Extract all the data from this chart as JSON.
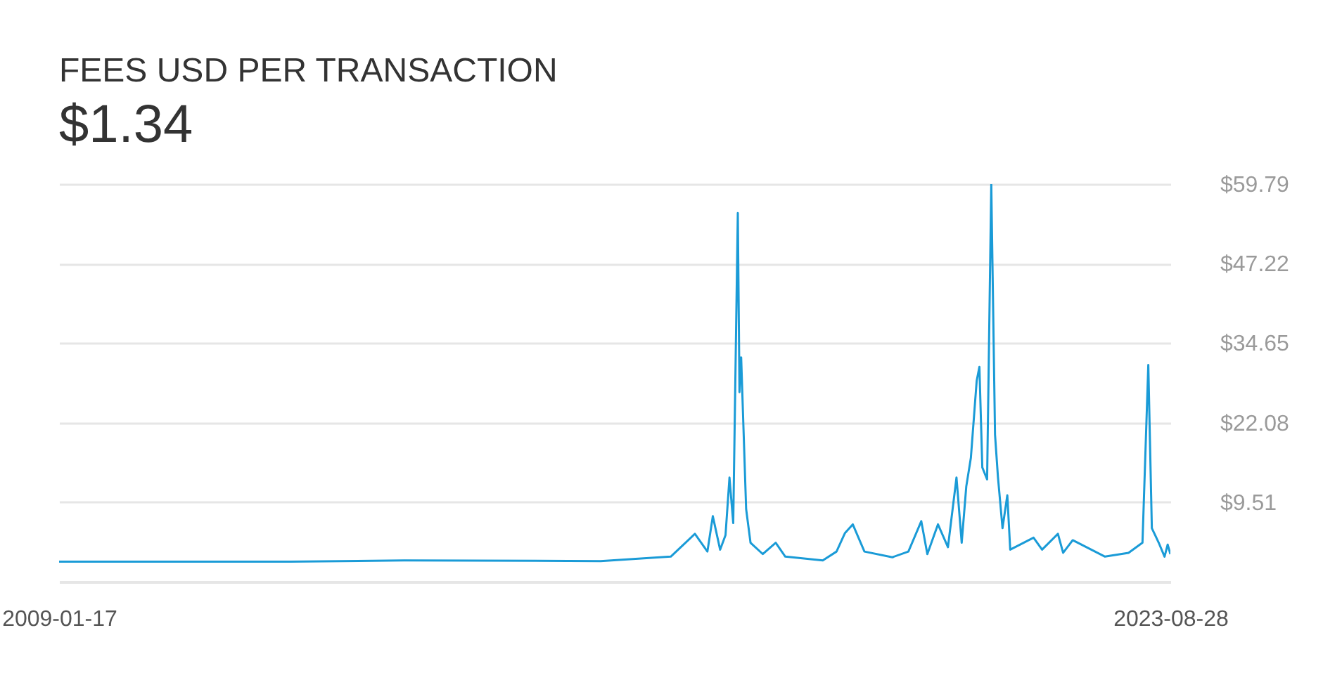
{
  "chart_data": {
    "type": "line",
    "title": "FEES USD PER TRANSACTION",
    "subtitle": "$1.34",
    "x": [
      "2009-01-17",
      "2012-02",
      "2013-08",
      "2016-03",
      "2017-02",
      "2017-05-28",
      "2017-07-27",
      "2017-08-22",
      "2017-09-26",
      "2017-10-22",
      "2017-11-10",
      "2017-11-28",
      "2017-12-20",
      "2017-12-28",
      "2018-01-05",
      "2018-01-29",
      "2018-02-19",
      "2018-04-19",
      "2018-06-20",
      "2018-08-05",
      "2019-02-01",
      "2019-04-08",
      "2019-05-18",
      "2019-06-25",
      "2019-08-20",
      "2020-01-01",
      "2020-03-18",
      "2020-05-19",
      "2020-06-17",
      "2020-08-07",
      "2020-09-24",
      "2020-11-04",
      "2020-11-29",
      "2020-12-21",
      "2021-01-12",
      "2021-02-09",
      "2021-02-22",
      "2021-03-08",
      "2021-03-31",
      "2021-04-20",
      "2021-05-08",
      "2021-05-22",
      "2021-06-13",
      "2021-07-06",
      "2021-07-20",
      "2021-11-09",
      "2021-12-20",
      "2022-03-06",
      "2022-03-31",
      "2022-05-16",
      "2022-10-18",
      "2023-02-08",
      "2023-04-16",
      "2023-05-14",
      "2023-05-31",
      "2023-07-03",
      "2023-07-31",
      "2023-08-15",
      "2023-08-28"
    ],
    "series": [
      {
        "color": "#1a9bd7",
        "values": [
          0.1,
          0.1,
          0.3,
          0.2,
          0.9,
          4.5,
          1.7,
          7.3,
          2.0,
          4.3,
          13.4,
          6.2,
          55.2,
          26.9,
          32.4,
          8.4,
          3.1,
          1.3,
          3.1,
          0.9,
          0.3,
          1.7,
          4.6,
          6.0,
          1.7,
          0.8,
          1.7,
          6.5,
          1.3,
          6.0,
          2.4,
          13.4,
          3.1,
          12.0,
          16.5,
          28.7,
          30.9,
          15.0,
          13.1,
          59.7,
          20.2,
          13.5,
          5.4,
          10.6,
          2.0,
          3.9,
          2.0,
          4.5,
          1.5,
          3.5,
          0.9,
          1.5,
          3.1,
          31.2,
          5.4,
          3.1,
          0.9,
          2.8,
          1.3
        ]
      }
    ],
    "xlim": [
      "2009-01-17",
      "2023-08-28"
    ],
    "xticks": [
      "2009-01-17",
      "2023-08-28"
    ],
    "ylim": [
      -3.06,
      59.79
    ],
    "yticks": [
      {
        "value": 9.51,
        "label": "$9.51"
      },
      {
        "value": 22.08,
        "label": "$22.08"
      },
      {
        "value": 34.65,
        "label": "$34.65"
      },
      {
        "value": 47.22,
        "label": "$47.22"
      },
      {
        "value": 59.79,
        "label": "$59.79"
      }
    ],
    "grid": "y",
    "line_style": "solid",
    "marker": "none"
  }
}
